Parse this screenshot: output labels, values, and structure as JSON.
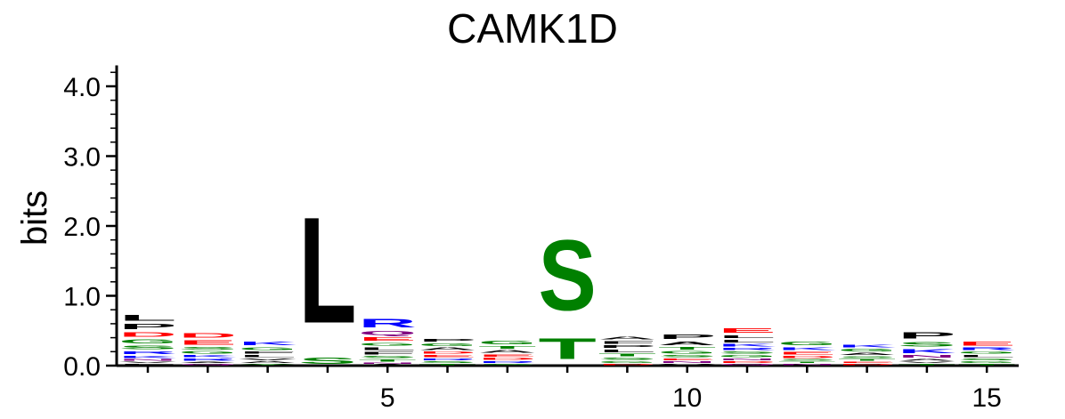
{
  "chart_data": {
    "type": "sequence-logo",
    "title": "CAMK1D",
    "ylabel": "bits",
    "xlabel": "",
    "ylim": [
      0,
      4.3
    ],
    "y_ticks": [
      "0.0",
      "1.0",
      "2.0",
      "3.0",
      "4.0"
    ],
    "x_ticks": [
      "5",
      "10",
      "15"
    ],
    "colors": {
      "A": "#000000",
      "C": "#0000ff",
      "D": "#ff0000",
      "E": "#ff0000",
      "F": "#000000",
      "G": "#008000",
      "H": "#0000ff",
      "I": "#000000",
      "K": "#0000ff",
      "L": "#000000",
      "M": "#000000",
      "N": "#800080",
      "P": "#000000",
      "Q": "#800080",
      "R": "#0000ff",
      "S": "#008000",
      "T": "#008000",
      "V": "#000000",
      "W": "#000000",
      "Y": "#008000"
    },
    "positions": [
      {
        "pos": 1,
        "letters": [
          [
            "F",
            0.03
          ],
          [
            "V",
            0.03
          ],
          [
            "N",
            0.04
          ],
          [
            "K",
            0.05
          ],
          [
            "R",
            0.07
          ],
          [
            "S",
            0.08
          ],
          [
            "G",
            0.09
          ],
          [
            "D",
            0.11
          ],
          [
            "P",
            0.12
          ],
          [
            "L",
            0.13
          ]
        ]
      },
      {
        "pos": 2,
        "letters": [
          [
            "Q",
            0.03
          ],
          [
            "A",
            0.03
          ],
          [
            "R",
            0.05
          ],
          [
            "K",
            0.05
          ],
          [
            "G",
            0.06
          ],
          [
            "S",
            0.06
          ],
          [
            "E",
            0.1
          ],
          [
            "D",
            0.11
          ]
        ]
      },
      {
        "pos": 3,
        "letters": [
          [
            "Y",
            0.03
          ],
          [
            "A",
            0.04
          ],
          [
            "V",
            0.04
          ],
          [
            "L",
            0.05
          ],
          [
            "F",
            0.05
          ],
          [
            "G",
            0.07
          ],
          [
            "K",
            0.08
          ]
        ]
      },
      {
        "pos": 4,
        "letters": [
          [
            "S",
            0.14
          ],
          [
            "L",
            2.43
          ]
        ]
      },
      {
        "pos": 5,
        "letters": [
          [
            "A",
            0.02
          ],
          [
            "N",
            0.03
          ],
          [
            "T",
            0.05
          ],
          [
            "S",
            0.05
          ],
          [
            "F",
            0.06
          ],
          [
            "L",
            0.06
          ],
          [
            "G",
            0.07
          ],
          [
            "E",
            0.08
          ],
          [
            "Q",
            0.09
          ],
          [
            "R",
            0.2
          ]
        ]
      },
      {
        "pos": 6,
        "letters": [
          [
            "T",
            0.03
          ],
          [
            "S",
            0.04
          ],
          [
            "R",
            0.04
          ],
          [
            "E",
            0.05
          ],
          [
            "D",
            0.05
          ],
          [
            "A",
            0.06
          ],
          [
            "G",
            0.06
          ],
          [
            "P",
            0.07
          ]
        ]
      },
      {
        "pos": 7,
        "letters": [
          [
            "S",
            0.03
          ],
          [
            "R",
            0.04
          ],
          [
            "D",
            0.05
          ],
          [
            "E",
            0.05
          ],
          [
            "A",
            0.06
          ],
          [
            "T",
            0.06
          ],
          [
            "G",
            0.08
          ]
        ]
      },
      {
        "pos": 8,
        "letters": [
          [
            "T",
            0.48
          ],
          [
            "S",
            1.61
          ]
        ]
      },
      {
        "pos": 9,
        "letters": [
          [
            "D",
            0.03
          ],
          [
            "G",
            0.04
          ],
          [
            "S",
            0.05
          ],
          [
            "T",
            0.06
          ],
          [
            "L",
            0.06
          ],
          [
            "P",
            0.06
          ],
          [
            "F",
            0.06
          ],
          [
            "A",
            0.07
          ]
        ]
      },
      {
        "pos": 10,
        "letters": [
          [
            "V",
            0.03
          ],
          [
            "N",
            0.04
          ],
          [
            "E",
            0.04
          ],
          [
            "S",
            0.05
          ],
          [
            "G",
            0.06
          ],
          [
            "T",
            0.06
          ],
          [
            "A",
            0.08
          ],
          [
            "P",
            0.1
          ]
        ]
      },
      {
        "pos": 11,
        "letters": [
          [
            "Q",
            0.03
          ],
          [
            "D",
            0.04
          ],
          [
            "N",
            0.04
          ],
          [
            "G",
            0.05
          ],
          [
            "S",
            0.05
          ],
          [
            "R",
            0.05
          ],
          [
            "K",
            0.06
          ],
          [
            "L",
            0.06
          ],
          [
            "L",
            0.07
          ],
          [
            "E",
            0.1
          ]
        ]
      },
      {
        "pos": 12,
        "letters": [
          [
            "N",
            0.03
          ],
          [
            "T",
            0.03
          ],
          [
            "S",
            0.04
          ],
          [
            "D",
            0.05
          ],
          [
            "E",
            0.06
          ],
          [
            "K",
            0.07
          ],
          [
            "G",
            0.08
          ]
        ]
      },
      {
        "pos": 13,
        "letters": [
          [
            "D",
            0.03
          ],
          [
            "E",
            0.03
          ],
          [
            "T",
            0.04
          ],
          [
            "S",
            0.04
          ],
          [
            "A",
            0.05
          ],
          [
            "G",
            0.06
          ],
          [
            "K",
            0.06
          ]
        ]
      },
      {
        "pos": 14,
        "letters": [
          [
            "T",
            0.03
          ],
          [
            "V",
            0.03
          ],
          [
            "A",
            0.04
          ],
          [
            "N",
            0.06
          ],
          [
            "K",
            0.09
          ],
          [
            "S",
            0.11
          ],
          [
            "P",
            0.14
          ]
        ]
      },
      {
        "pos": 15,
        "letters": [
          [
            "T",
            0.03
          ],
          [
            "G",
            0.04
          ],
          [
            "S",
            0.04
          ],
          [
            "L",
            0.05
          ],
          [
            "G",
            0.05
          ],
          [
            "R",
            0.06
          ],
          [
            "E",
            0.09
          ]
        ]
      }
    ]
  }
}
